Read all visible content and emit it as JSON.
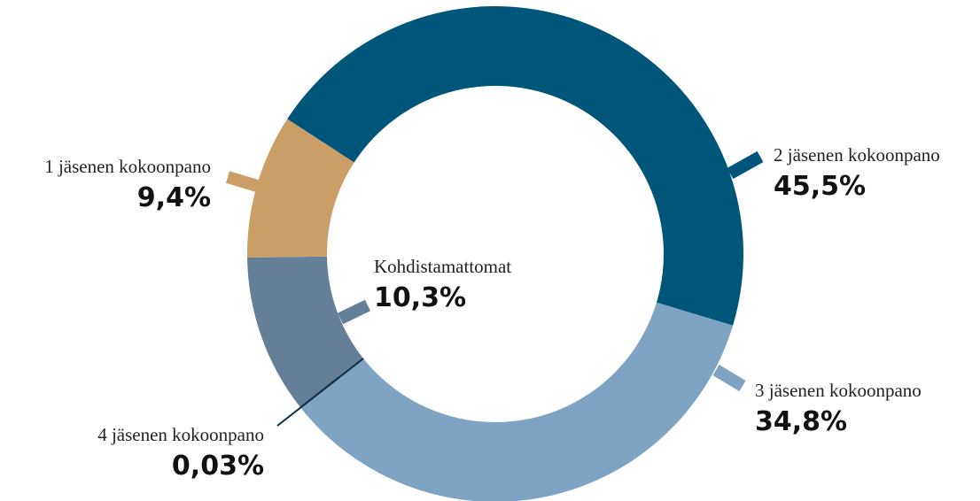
{
  "chart_data": {
    "type": "donut",
    "categories": [
      "2 jäsenen kokoonpano",
      "3 jäsenen kokoonpano",
      "4 jäsenen kokoonpano",
      "Kohdistamattomat",
      "1 jäsenen kokoonpano"
    ],
    "values": [
      45.5,
      34.8,
      0.03,
      10.3,
      9.4
    ],
    "value_labels": [
      "45,5%",
      "34,8%",
      "0,03%",
      "10,3%",
      "9,4%"
    ],
    "colors": [
      "#00567a",
      "#7fa3c2",
      "#0b2a45",
      "#647f98",
      "#c99e67"
    ]
  }
}
